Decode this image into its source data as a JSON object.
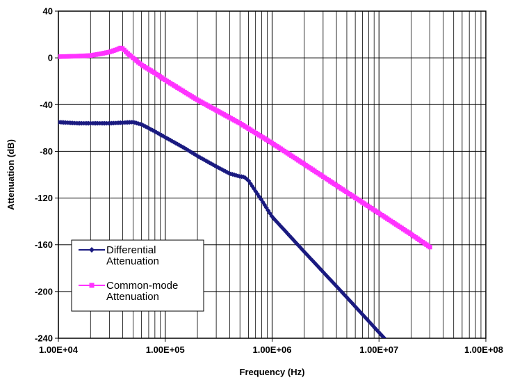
{
  "chart_data": {
    "type": "line",
    "title": "",
    "xlabel": "Frequency (Hz)",
    "ylabel": "Attenuation (dB)",
    "x_scale": "log",
    "xlim": [
      10000,
      100000000
    ],
    "ylim": [
      -240,
      40
    ],
    "x_tick_values": [
      10000,
      100000,
      1000000,
      10000000,
      100000000
    ],
    "x_tick_labels": [
      "1.00E+04",
      "1.00E+05",
      "1.00E+06",
      "1.00E+07",
      "1.00E+08"
    ],
    "y_tick_values": [
      40,
      0,
      -40,
      -80,
      -120,
      -160,
      -200,
      -240
    ],
    "y_tick_labels": [
      "40",
      "0",
      "-40",
      "-80",
      "-120",
      "-160",
      "-200",
      "-240"
    ],
    "grid": true,
    "legend": {
      "position": "bottom-left",
      "entries": [
        {
          "line1": "Differential",
          "line2": "Attenuation"
        },
        {
          "line1": "Common-mode",
          "line2": "Attenuation"
        }
      ]
    },
    "series": [
      {
        "name": "Differential Attenuation",
        "color": "#1a1a80",
        "marker": "diamond",
        "x": [
          10000,
          15000,
          20000,
          30000,
          40000,
          50000,
          60000,
          80000,
          100000,
          150000,
          200000,
          300000,
          400000,
          500000,
          550000,
          600000,
          800000,
          1000000,
          2000000,
          5000000,
          10000000,
          11500000
        ],
        "y": [
          -55,
          -56,
          -56,
          -56,
          -55.5,
          -55,
          -57,
          -63,
          -68,
          -77,
          -84,
          -93,
          -99,
          -101.5,
          -102,
          -105,
          -122,
          -136,
          -166,
          -205,
          -235,
          -241
        ]
      },
      {
        "name": "Common-mode Attenuation",
        "color": "#ff33ff",
        "marker": "square",
        "x": [
          10000,
          15000,
          20000,
          25000,
          30000,
          35000,
          38000,
          40000,
          43000,
          50000,
          60000,
          80000,
          100000,
          200000,
          500000,
          1000000,
          2000000,
          5000000,
          10000000,
          20000000,
          30000000
        ],
        "y": [
          1,
          1.5,
          2,
          3.5,
          5,
          7,
          8.5,
          8,
          5,
          0,
          -6,
          -13,
          -19,
          -36,
          -56,
          -73,
          -91,
          -115,
          -133,
          -151,
          -162
        ]
      }
    ]
  }
}
